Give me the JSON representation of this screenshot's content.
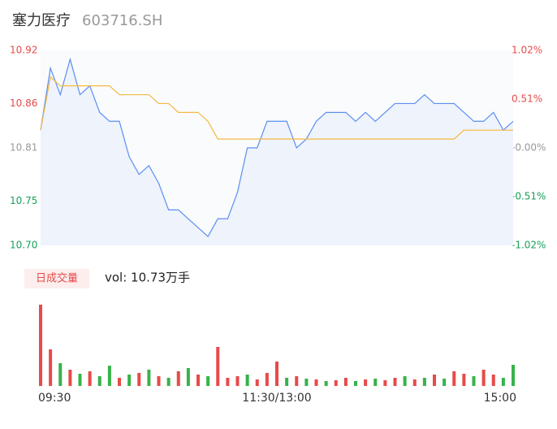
{
  "chart_data": {
    "type": "intraday",
    "title": "塞力医疗",
    "subtitle": "603716.SH",
    "categories": [
      "09:30",
      null,
      null,
      null,
      null,
      null,
      null,
      null,
      null,
      null,
      null,
      null,
      null,
      null,
      null,
      null,
      null,
      null,
      null,
      null,
      null,
      null,
      null,
      null,
      "11:30/13:00",
      null,
      null,
      null,
      null,
      null,
      null,
      null,
      null,
      null,
      null,
      null,
      null,
      null,
      null,
      null,
      null,
      null,
      null,
      null,
      null,
      null,
      null,
      null,
      "15:00"
    ],
    "series": [
      {
        "name": "price",
        "color": "#5b8ff0",
        "values": [
          10.83,
          10.9,
          10.87,
          10.91,
          10.87,
          10.88,
          10.85,
          10.84,
          10.84,
          10.8,
          10.78,
          10.79,
          10.77,
          10.74,
          10.74,
          10.73,
          10.72,
          10.71,
          10.73,
          10.73,
          10.76,
          10.81,
          10.81,
          10.84,
          10.84,
          10.84,
          10.81,
          10.82,
          10.84,
          10.85,
          10.85,
          10.85,
          10.84,
          10.85,
          10.84,
          10.85,
          10.86,
          10.86,
          10.86,
          10.87,
          10.86,
          10.86,
          10.86,
          10.85,
          10.84,
          10.84,
          10.85,
          10.83,
          10.84
        ]
      },
      {
        "name": "average",
        "color": "#f5b942",
        "values": [
          10.83,
          10.89,
          10.88,
          10.88,
          10.88,
          10.88,
          10.88,
          10.88,
          10.87,
          10.87,
          10.87,
          10.87,
          10.86,
          10.86,
          10.85,
          10.85,
          10.85,
          10.84,
          10.82,
          10.82,
          10.82,
          10.82,
          10.82,
          10.82,
          10.82,
          10.82,
          10.82,
          10.82,
          10.82,
          10.82,
          10.82,
          10.82,
          10.82,
          10.82,
          10.82,
          10.82,
          10.82,
          10.82,
          10.82,
          10.82,
          10.82,
          10.82,
          10.82,
          10.83,
          10.83,
          10.83,
          10.83,
          10.83,
          10.83
        ]
      }
    ],
    "ylim": [
      10.7,
      10.92
    ],
    "yticks": [
      10.92,
      10.86,
      10.81,
      10.75,
      {
        "value": 10.7,
        "label": "10.70"
      }
    ],
    "y2lim": [
      -1.02,
      1.02
    ],
    "y2ticks": [
      {
        "value": 1.02,
        "label": "1.02%"
      },
      {
        "value": 0.51,
        "label": "0.51%"
      },
      {
        "value": 0,
        "label": "-0.00%"
      },
      {
        "value": -0.51,
        "label": "-0.51%"
      },
      {
        "value": -1.02,
        "label": "-1.02%"
      }
    ],
    "volume": {
      "badge": "日成交量",
      "label": "vol: 10.73万手",
      "values": [
        100,
        45,
        28,
        20,
        15,
        18,
        12,
        25,
        10,
        14,
        16,
        20,
        12,
        10,
        18,
        22,
        14,
        12,
        48,
        10,
        12,
        14,
        8,
        16,
        30,
        10,
        12,
        9,
        8,
        6,
        7,
        10,
        6,
        8,
        9,
        7,
        10,
        12,
        8,
        10,
        14,
        9,
        18,
        15,
        12,
        20,
        14,
        10,
        26
      ],
      "colors": [
        "#e84a4a",
        "#e84a4a",
        "#36b34a",
        "#e84a4a",
        "#36b34a",
        "#e84a4a",
        "#36b34a",
        "#36b34a",
        "#e84a4a",
        "#36b34a",
        "#e84a4a",
        "#36b34a",
        "#e84a4a",
        "#36b34a",
        "#e84a4a",
        "#36b34a",
        "#e84a4a",
        "#36b34a",
        "#e84a4a",
        "#e84a4a",
        "#e84a4a",
        "#36b34a",
        "#e84a4a",
        "#e84a4a",
        "#e84a4a",
        "#36b34a",
        "#e84a4a",
        "#36b34a",
        "#e84a4a",
        "#36b34a",
        "#e84a4a",
        "#e84a4a",
        "#36b34a",
        "#e84a4a",
        "#36b34a",
        "#e84a4a",
        "#e84a4a",
        "#36b34a",
        "#e84a4a",
        "#36b34a",
        "#e84a4a",
        "#36b34a",
        "#e84a4a",
        "#e84a4a",
        "#36b34a",
        "#e84a4a",
        "#e84a4a",
        "#36b34a",
        "#36b34a"
      ]
    }
  }
}
